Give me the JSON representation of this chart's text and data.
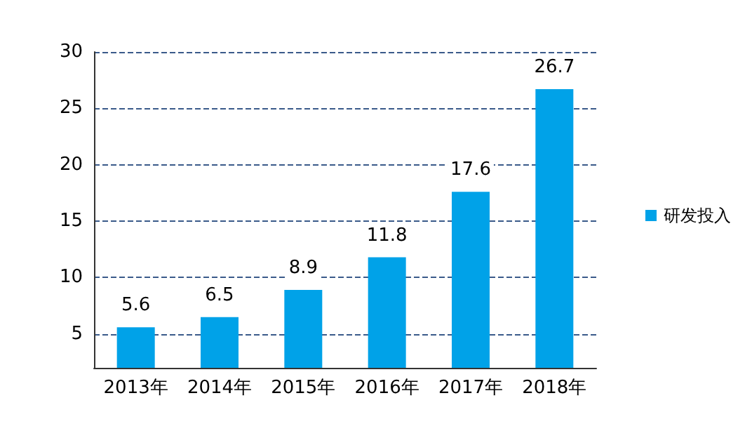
{
  "chart_data": {
    "type": "bar",
    "categories": [
      "2013年",
      "2014年",
      "2015年",
      "2016年",
      "2017年",
      "2018年"
    ],
    "series": [
      {
        "name": "研发投入",
        "color": "#00a2e8",
        "values": [
          5.6,
          6.5,
          8.9,
          11.8,
          17.6,
          26.7
        ]
      }
    ],
    "ylim": [
      2,
      30
    ],
    "yticks": [
      5,
      10,
      15,
      20,
      25,
      30
    ],
    "grid": "y",
    "legend": "right",
    "data_labels": true
  }
}
